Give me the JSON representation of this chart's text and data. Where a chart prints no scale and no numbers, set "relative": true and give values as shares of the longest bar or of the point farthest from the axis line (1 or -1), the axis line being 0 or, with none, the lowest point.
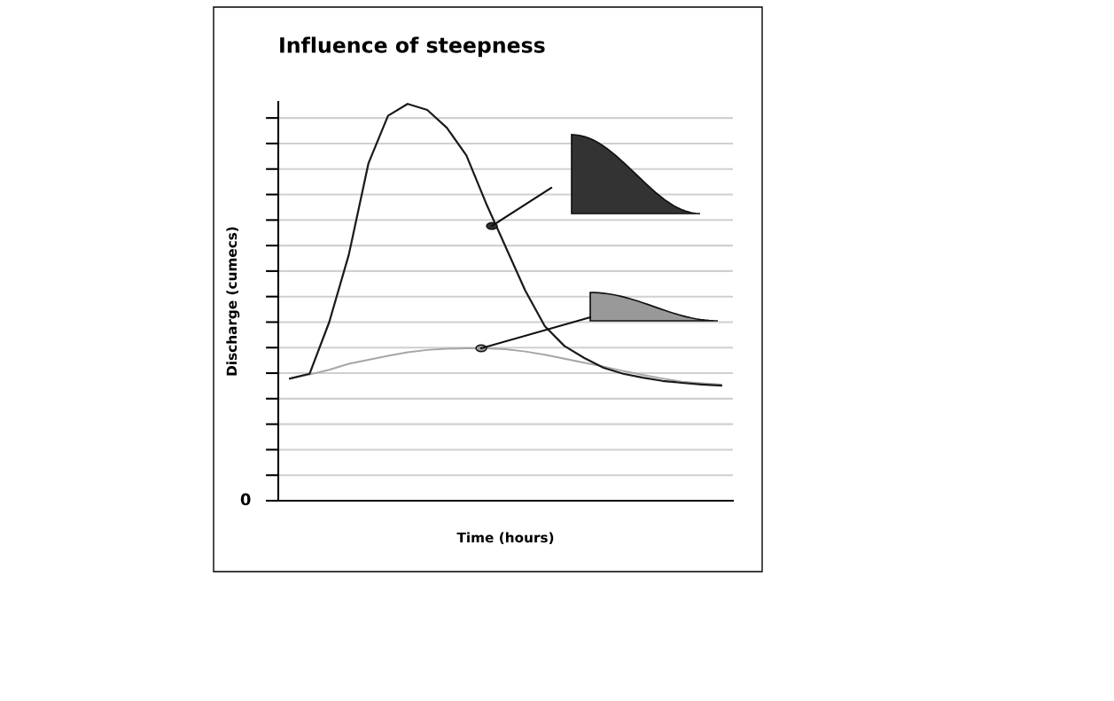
{
  "chart_data": {
    "type": "line",
    "title": "Influence of steepness",
    "xlabel": "Time (hours)",
    "ylabel": "Discharge (cumecs)",
    "relative": true,
    "categories": [
      null,
      null,
      null,
      null,
      null,
      null,
      null,
      null,
      null,
      null,
      null,
      null,
      null,
      null,
      null,
      null,
      null,
      null,
      null,
      null,
      null,
      null,
      null
    ],
    "series": [
      {
        "color": "#1a1a1a",
        "values": [
          0.308,
          0.32,
          0.45,
          0.62,
          0.85,
          0.97,
          1.0,
          0.985,
          0.94,
          0.87,
          0.75,
          0.64,
          0.53,
          0.44,
          0.39,
          0.36,
          0.335,
          0.32,
          0.31,
          0.302,
          0.297,
          0.293,
          0.29
        ]
      },
      {
        "color": "#a6a6a6",
        "values": [
          0.308,
          0.318,
          0.33,
          0.345,
          0.355,
          0.365,
          0.374,
          0.38,
          0.383,
          0.384,
          0.384,
          0.382,
          0.376,
          0.368,
          0.358,
          0.348,
          0.338,
          0.327,
          0.317,
          0.308,
          0.3,
          0.296,
          0.293
        ]
      }
    ],
    "annotations": [
      "0"
    ],
    "grid": "y",
    "marker": "none",
    "line_style": "solid"
  }
}
